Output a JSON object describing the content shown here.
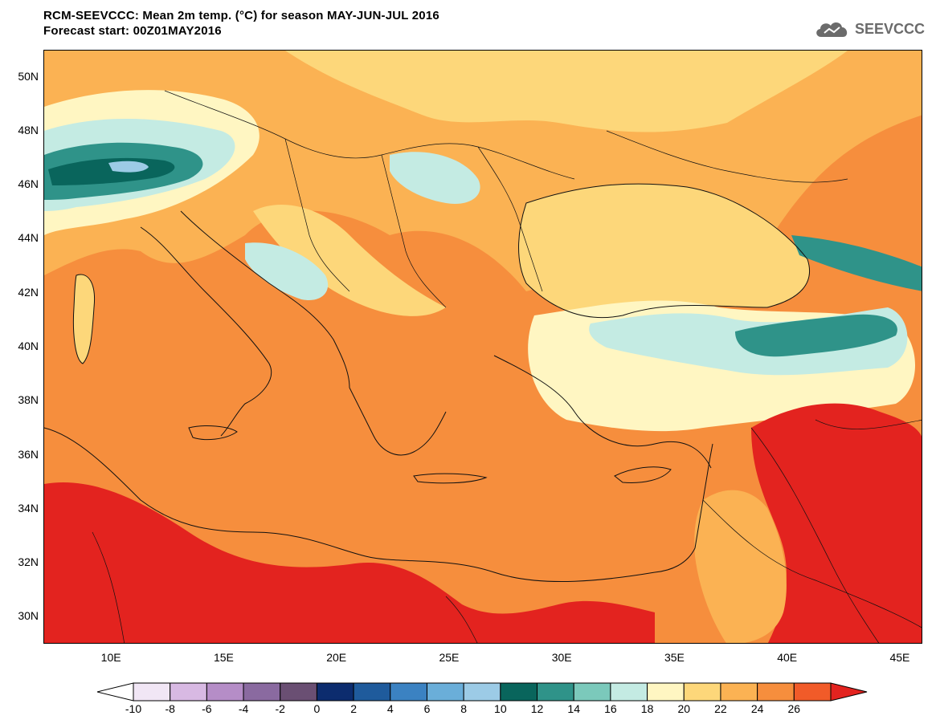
{
  "header": {
    "title": "RCM-SEEVCCC: Mean 2m temp. (°C) for season MAY-JUN-JUL 2016",
    "subtitle": "Forecast start: 00Z01MAY2016",
    "logo_text": "SEEVCCC"
  },
  "map": {
    "lat_labels": [
      "50N",
      "48N",
      "46N",
      "44N",
      "42N",
      "40N",
      "38N",
      "36N",
      "34N",
      "32N",
      "30N"
    ],
    "lon_labels": [
      "10E",
      "15E",
      "20E",
      "25E",
      "30E",
      "35E",
      "40E",
      "45E"
    ],
    "lat_range": [
      29,
      51
    ],
    "lon_range": [
      7,
      46
    ]
  },
  "colorbar": {
    "levels": [
      "-10",
      "-8",
      "-6",
      "-4",
      "-2",
      "0",
      "2",
      "4",
      "6",
      "8",
      "10",
      "12",
      "14",
      "16",
      "18",
      "20",
      "22",
      "24",
      "26"
    ],
    "colors": [
      "#ffffff",
      "#f1e6f5",
      "#d8b9e3",
      "#b58dc7",
      "#8a6aa0",
      "#6a4f73",
      "#0c2c6e",
      "#1f5b9c",
      "#3b82c2",
      "#6aaed9",
      "#9ccbe6",
      "#09655c",
      "#2f9389",
      "#7bc9bb",
      "#c4ebe3",
      "#fff6c2",
      "#fdd77a",
      "#fbb253",
      "#f68e3d",
      "#f15b29",
      "#e3231f"
    ]
  },
  "palette": {
    "hot": "#e3231f",
    "warm": "#f68e3d",
    "mild": "#fbb253",
    "pale": "#fdd77a",
    "cream": "#fff6c2",
    "teal_light": "#c4ebe3",
    "teal": "#7bc9bb",
    "teal_dark": "#2f9389",
    "teal_deep": "#09655c",
    "blue_light": "#9ccbe6",
    "coast": "#111111"
  }
}
